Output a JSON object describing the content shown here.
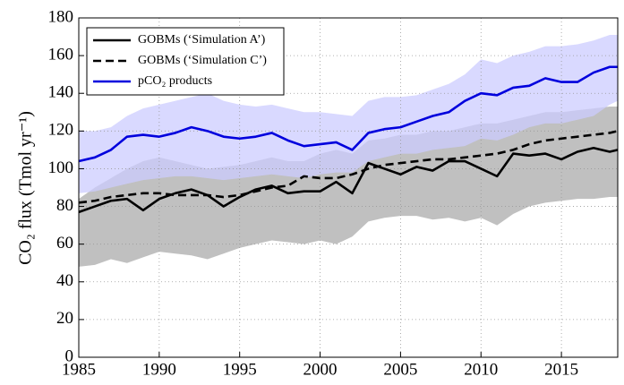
{
  "chart_data": {
    "type": "line",
    "y_label": "CO₂ flux (Tmol yr⁻¹)",
    "x": [
      1985,
      1986,
      1987,
      1988,
      1989,
      1990,
      1991,
      1992,
      1993,
      1994,
      1995,
      1996,
      1997,
      1998,
      1999,
      2000,
      2001,
      2002,
      2003,
      2004,
      2005,
      2006,
      2007,
      2008,
      2009,
      2010,
      2011,
      2012,
      2013,
      2014,
      2015,
      2016,
      2017,
      2018,
      2018.5
    ],
    "series": [
      {
        "name": "GOBMs (‘Simulation A’)",
        "color": "#000000",
        "dash": false,
        "values": [
          77,
          80,
          83,
          84,
          78,
          84,
          87,
          89,
          86,
          80,
          85,
          89,
          91,
          87,
          88,
          88,
          93,
          87,
          103,
          100,
          97,
          101,
          99,
          104,
          104,
          100,
          96,
          108,
          107,
          108,
          105,
          109,
          111,
          109,
          110
        ]
      },
      {
        "name": "GOBMs (‘Simulation C’)",
        "color": "#000000",
        "dash": true,
        "values": [
          82,
          83,
          85,
          86,
          87,
          87,
          86,
          86,
          86,
          85,
          86,
          88,
          90,
          91,
          96,
          95,
          95,
          97,
          100,
          102,
          103,
          104,
          105,
          105,
          106,
          107,
          108,
          110,
          113,
          115,
          116,
          117,
          118,
          119,
          120
        ]
      },
      {
        "name": "pCO₂ products",
        "color": "#0000dd",
        "dash": false,
        "values": [
          104,
          106,
          110,
          117,
          118,
          117,
          119,
          122,
          120,
          117,
          116,
          117,
          119,
          115,
          112,
          113,
          114,
          110,
          119,
          121,
          122,
          125,
          128,
          130,
          136,
          140,
          139,
          143,
          144,
          148,
          146,
          146,
          151,
          154,
          154
        ]
      }
    ],
    "bands": [
      {
        "color": "#c0c0c0",
        "lower": [
          48,
          49,
          52,
          50,
          53,
          56,
          55,
          54,
          52,
          55,
          58,
          60,
          62,
          61,
          60,
          62,
          60,
          64,
          72,
          74,
          75,
          75,
          73,
          74,
          72,
          74,
          70,
          76,
          80,
          82,
          83,
          84,
          84,
          85,
          85
        ],
        "upper": [
          84,
          90,
          95,
          100,
          104,
          106,
          104,
          102,
          100,
          101,
          102,
          104,
          106,
          104,
          104,
          108,
          110,
          108,
          115,
          116,
          118,
          118,
          120,
          120,
          122,
          124,
          124,
          126,
          128,
          130,
          130,
          131,
          132,
          133,
          133
        ]
      },
      {
        "color": "#ccccff",
        "lower": [
          87,
          88,
          90,
          92,
          94,
          95,
          96,
          96,
          95,
          94,
          95,
          96,
          97,
          96,
          95,
          97,
          98,
          98,
          104,
          106,
          108,
          108,
          110,
          111,
          112,
          116,
          115,
          118,
          122,
          124,
          124,
          126,
          128,
          134,
          136
        ],
        "upper": [
          120,
          120,
          122,
          128,
          132,
          134,
          136,
          138,
          140,
          136,
          134,
          133,
          134,
          132,
          130,
          130,
          129,
          128,
          136,
          138,
          138,
          139,
          142,
          145,
          150,
          158,
          156,
          160,
          162,
          165,
          165,
          166,
          168,
          171,
          171
        ]
      }
    ],
    "xlim": [
      1985,
      2018.5
    ],
    "ylim": [
      0,
      180
    ],
    "xticks": [
      1985,
      1990,
      1995,
      2000,
      2005,
      2010,
      2015
    ],
    "yticks": [
      0,
      20,
      40,
      60,
      80,
      100,
      120,
      140,
      160,
      180
    ],
    "grid": true,
    "legend": "upper left"
  }
}
